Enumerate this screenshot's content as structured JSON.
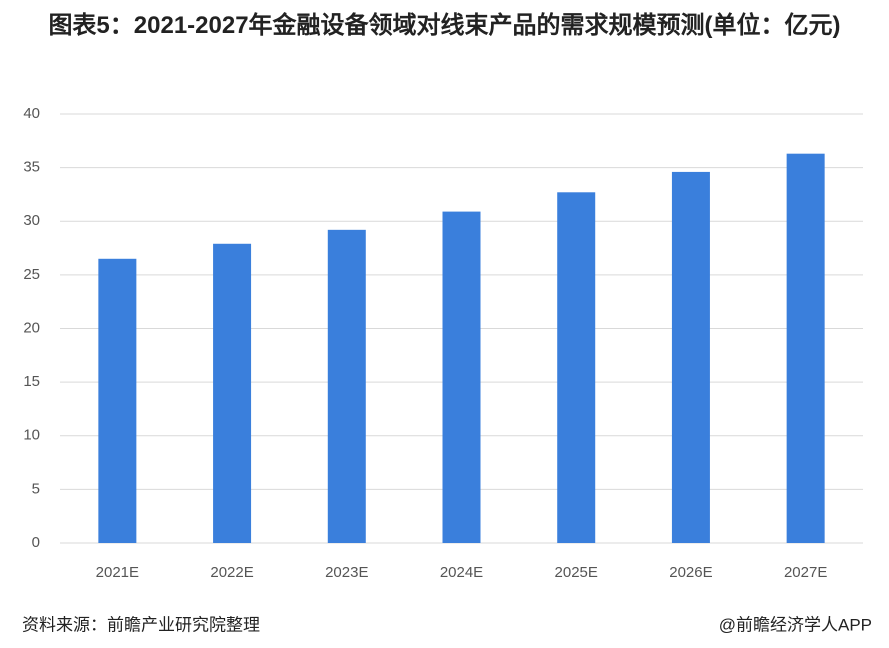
{
  "chart_data": {
    "type": "bar",
    "title": "图表5：2021-2027年金融设备领域对线束产品的需求规模预测(单位：亿元)",
    "categories": [
      "2021E",
      "2022E",
      "2023E",
      "2024E",
      "2025E",
      "2026E",
      "2027E"
    ],
    "values": [
      26.5,
      27.9,
      29.2,
      30.9,
      32.7,
      34.6,
      36.3
    ],
    "color": "#3a7fdc",
    "ylim": [
      0,
      40
    ],
    "yticks": [
      0,
      5,
      10,
      15,
      20,
      25,
      30,
      35,
      40
    ],
    "grid": true,
    "source": "资料来源：前瞻产业研究院整理",
    "watermark": "@前瞻经济学人APP"
  }
}
